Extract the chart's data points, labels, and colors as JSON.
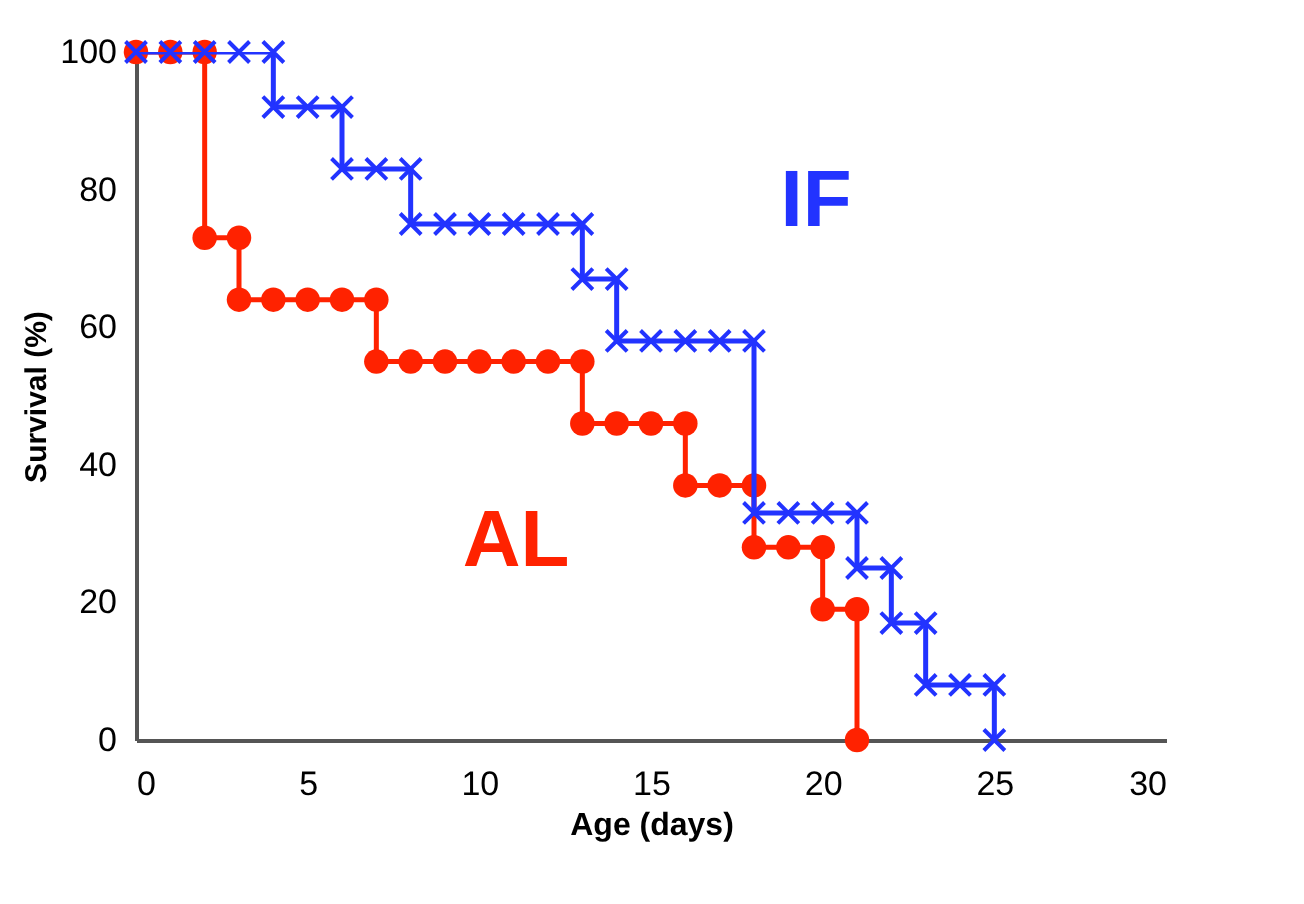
{
  "chart_data": {
    "type": "line",
    "xlabel": "Age (days)",
    "ylabel": "Survival (%)",
    "xlim": [
      0,
      30
    ],
    "xticks": [
      0,
      5,
      10,
      15,
      20,
      25,
      30
    ],
    "ylim": [
      0,
      100
    ],
    "yticks": [
      0,
      20,
      40,
      60,
      80,
      100
    ],
    "legend": false,
    "grid": false,
    "line_style": "solid",
    "series": [
      {
        "name": "AL",
        "color": "#ff2200",
        "marker": "circle",
        "x": [
          0,
          1,
          2,
          2,
          3,
          3,
          4,
          5,
          6,
          7,
          7,
          8,
          9,
          10,
          11,
          12,
          13,
          13,
          14,
          15,
          16,
          16,
          17,
          18,
          18,
          19,
          20,
          20,
          21,
          21
        ],
        "values": [
          100,
          100,
          100,
          73,
          73,
          64,
          64,
          64,
          64,
          64,
          55,
          55,
          55,
          55,
          55,
          55,
          55,
          46,
          46,
          46,
          46,
          37,
          37,
          37,
          28,
          28,
          28,
          19,
          19,
          0
        ]
      },
      {
        "name": "IF",
        "color": "#2233ff",
        "marker": "cross",
        "x": [
          0,
          1,
          2,
          3,
          4,
          4,
          5,
          6,
          6,
          7,
          8,
          8,
          9,
          10,
          11,
          12,
          13,
          13,
          14,
          14,
          15,
          16,
          17,
          18,
          18,
          19,
          20,
          21,
          21,
          22,
          22,
          23,
          23,
          24,
          25,
          25
        ],
        "values": [
          100,
          100,
          100,
          100,
          100,
          92,
          92,
          92,
          83,
          83,
          83,
          75,
          75,
          75,
          75,
          75,
          75,
          67,
          67,
          58,
          58,
          58,
          58,
          58,
          33,
          33,
          33,
          33,
          25,
          25,
          17,
          17,
          8,
          8,
          8,
          0
        ]
      }
    ]
  }
}
